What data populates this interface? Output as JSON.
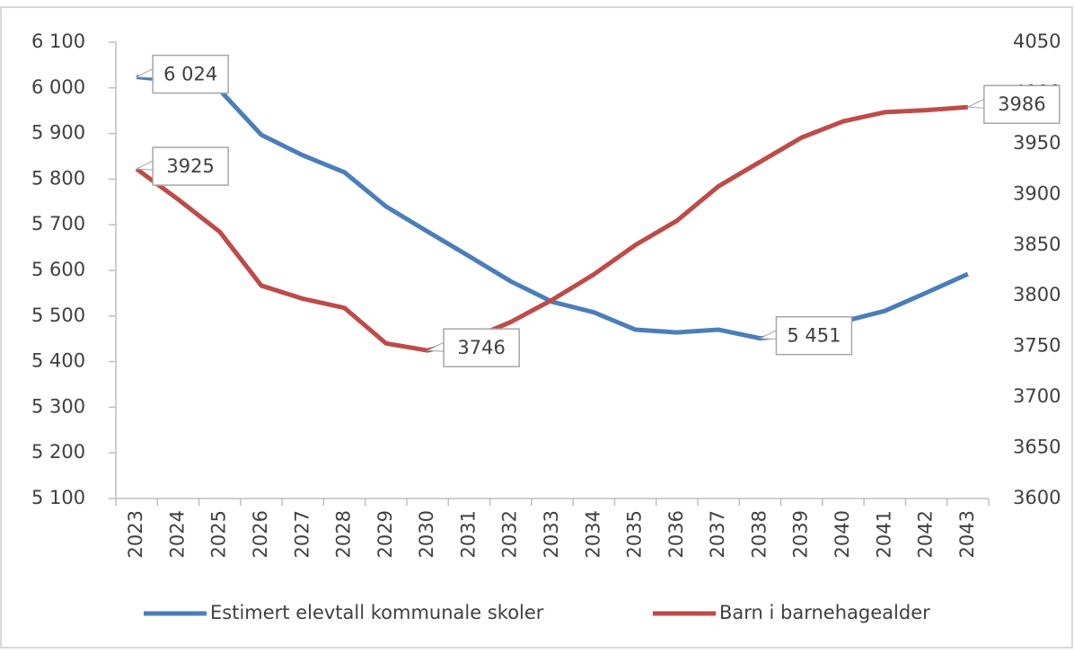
{
  "chart_data": {
    "type": "line",
    "categories": [
      "2023",
      "2024",
      "2025",
      "2026",
      "2027",
      "2028",
      "2029",
      "2030",
      "2031",
      "2032",
      "2033",
      "2034",
      "2035",
      "2036",
      "2037",
      "2038",
      "2039",
      "2040",
      "2041",
      "2042",
      "2043"
    ],
    "series": [
      {
        "name": "Estimert elevtall kommunale skoler",
        "color": "#4a7ebb",
        "values": [
          6024,
          6015,
          5995,
          5897,
          5852,
          5815,
          5740,
          5685,
          5631,
          5576,
          5531,
          5508,
          5470,
          5464,
          5470,
          5451,
          5460,
          5488,
          5511,
          5551,
          5592
        ],
        "value_labels": [
          "6 024",
          null,
          null,
          null,
          null,
          null,
          null,
          null,
          null,
          null,
          null,
          null,
          null,
          null,
          null,
          "5 451",
          null,
          null,
          null,
          null,
          null
        ]
      },
      {
        "name": "Barn i barnehagealder",
        "color": "#be4b48",
        "axis": "y2",
        "values": [
          3925,
          3895,
          3863,
          3810,
          3797,
          3788,
          3753,
          3746,
          3757,
          3774,
          3796,
          3821,
          3850,
          3874,
          3908,
          3932,
          3956,
          3972,
          3981,
          3983,
          3986
        ],
        "value_labels": [
          "3925",
          null,
          null,
          null,
          null,
          null,
          null,
          "3746",
          null,
          null,
          null,
          null,
          null,
          null,
          null,
          null,
          null,
          null,
          null,
          null,
          "3986"
        ]
      }
    ],
    "ylim": [
      5100,
      6100
    ],
    "yticks": [
      {
        "value": 5100,
        "label": "5 100"
      },
      {
        "value": 5200,
        "label": "5 200"
      },
      {
        "value": 5300,
        "label": "5 300"
      },
      {
        "value": 5400,
        "label": "5 400"
      },
      {
        "value": 5500,
        "label": "5 500"
      },
      {
        "value": 5600,
        "label": "5 600"
      },
      {
        "value": 5700,
        "label": "5 700"
      },
      {
        "value": 5800,
        "label": "5 800"
      },
      {
        "value": 5900,
        "label": "5 900"
      },
      {
        "value": 6000,
        "label": "6 000"
      },
      {
        "value": 6100,
        "label": "6 100"
      }
    ],
    "y2lim": [
      3600,
      4050
    ],
    "y2ticks": [
      3600,
      3650,
      3700,
      3750,
      3800,
      3850,
      3900,
      3950,
      4000,
      4050
    ],
    "legend": "bottom"
  }
}
